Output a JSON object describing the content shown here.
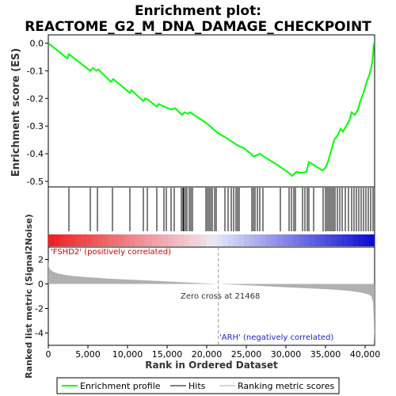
{
  "title_line1": "Enrichment plot:",
  "title_line2": "REACTOME_G2_M_DNA_DAMAGE_CHECKPOINT",
  "legend": {
    "profile_label": "Enrichment profile",
    "hits_label": "Hits",
    "scores_label": "Ranking metric scores"
  },
  "annotations": {
    "positive": "'FSHD2' (positively correlated)",
    "negative": "'ARH' (negatively correlated)",
    "zero_cross": "Zero cross at 21468"
  },
  "colors": {
    "profile": "#00ff00",
    "hits": "#000000",
    "metric_fill": "#b0b0b0",
    "zero_line": "#999999"
  },
  "chart_data": [
    {
      "type": "line",
      "ylabel": "Enrichment score (ES)",
      "xlim": [
        0,
        41200
      ],
      "ylim": [
        -0.52,
        0.03
      ],
      "yticks": [
        0.0,
        -0.1,
        -0.2,
        -0.3,
        -0.4,
        -0.5
      ],
      "ytick_labels": [
        "0.0",
        "-0.1",
        "-0.2",
        "-0.3",
        "-0.4",
        "-0.5"
      ],
      "grid": false,
      "series": [
        {
          "name": "Enrichment profile",
          "x": [
            0,
            2400,
            2600,
            5300,
            5600,
            6100,
            6300,
            7900,
            8200,
            10300,
            10500,
            12000,
            12200,
            12600,
            13700,
            13900,
            14700,
            15000,
            15600,
            16000,
            16900,
            17200,
            17600,
            17900,
            18400,
            19500,
            20200,
            20800,
            21400,
            22600,
            23900,
            24700,
            25600,
            25900,
            26300,
            26700,
            27200,
            28900,
            30400,
            30800,
            31000,
            31300,
            32100,
            32600,
            32900,
            33500,
            34600,
            35000,
            35300,
            35600,
            35800,
            36100,
            36600,
            36900,
            37200,
            37600,
            38000,
            38300,
            38700,
            39100,
            39400,
            39800,
            40200,
            40600,
            40900,
            41000,
            41100
          ],
          "y": [
            0.0,
            -0.055,
            -0.04,
            -0.1,
            -0.09,
            -0.1,
            -0.095,
            -0.14,
            -0.13,
            -0.18,
            -0.17,
            -0.21,
            -0.2,
            -0.205,
            -0.23,
            -0.22,
            -0.23,
            -0.235,
            -0.24,
            -0.235,
            -0.26,
            -0.25,
            -0.255,
            -0.25,
            -0.26,
            -0.28,
            -0.295,
            -0.31,
            -0.325,
            -0.345,
            -0.37,
            -0.38,
            -0.4,
            -0.41,
            -0.405,
            -0.4,
            -0.41,
            -0.44,
            -0.47,
            -0.48,
            -0.475,
            -0.465,
            -0.47,
            -0.465,
            -0.43,
            -0.44,
            -0.46,
            -0.45,
            -0.43,
            -0.4,
            -0.38,
            -0.35,
            -0.33,
            -0.31,
            -0.32,
            -0.3,
            -0.28,
            -0.25,
            -0.26,
            -0.24,
            -0.21,
            -0.18,
            -0.14,
            -0.11,
            -0.07,
            -0.04,
            0.0
          ]
        }
      ]
    },
    {
      "type": "scatter",
      "name": "Hits",
      "xlim": [
        0,
        41200
      ],
      "hits": [
        2600,
        5300,
        6200,
        8100,
        10300,
        12000,
        12500,
        13700,
        14600,
        14900,
        15500,
        15900,
        16800,
        17000,
        17100,
        17300,
        17500,
        17800,
        18000,
        18200,
        19900,
        20100,
        20300,
        20500,
        20700,
        21000,
        21200,
        22300,
        22700,
        23100,
        23400,
        23700,
        23900,
        24100,
        25700,
        25900,
        26100,
        26400,
        26700,
        27100,
        29300,
        30400,
        30700,
        31000,
        31200,
        32100,
        32400,
        32700,
        32900,
        33500,
        34700,
        35000,
        35200,
        35400,
        35600,
        35800,
        36000,
        36200,
        36500,
        36800,
        37100,
        37500,
        37900,
        38300,
        38600,
        38900,
        39200,
        39500,
        39800,
        40100,
        40400,
        40700,
        41000
      ]
    },
    {
      "type": "area",
      "ylabel": "Ranked list metric (Signal2Noise)",
      "xlabel": "Rank in Ordered Dataset",
      "xlim": [
        0,
        41200
      ],
      "ylim": [
        -5,
        3
      ],
      "xticks": [
        0,
        5000,
        10000,
        15000,
        20000,
        25000,
        30000,
        35000,
        40000
      ],
      "xtick_labels": [
        "0",
        "5,000",
        "10,000",
        "15,000",
        "20,000",
        "25,000",
        "30,000",
        "35,000",
        "40,000"
      ],
      "yticks": [
        2,
        0,
        -2,
        -4
      ],
      "ytick_labels": [
        "2",
        "0",
        "-2",
        "-4"
      ],
      "zero_cross": 21468,
      "series": [
        {
          "name": "Ranking metric scores",
          "x": [
            0,
            50,
            200,
            600,
            1200,
            2000,
            3000,
            5000,
            8000,
            12000,
            16000,
            19000,
            21468,
            24000,
            27000,
            30000,
            33000,
            36000,
            38000,
            39500,
            40400,
            40800,
            41000,
            41100,
            41200
          ],
          "y": [
            2.0,
            1.5,
            1.2,
            1.0,
            0.85,
            0.75,
            0.65,
            0.55,
            0.42,
            0.3,
            0.17,
            0.07,
            0.0,
            -0.08,
            -0.17,
            -0.27,
            -0.36,
            -0.46,
            -0.57,
            -0.7,
            -0.85,
            -1.0,
            -1.5,
            -3.0,
            -4.8
          ]
        }
      ]
    }
  ]
}
